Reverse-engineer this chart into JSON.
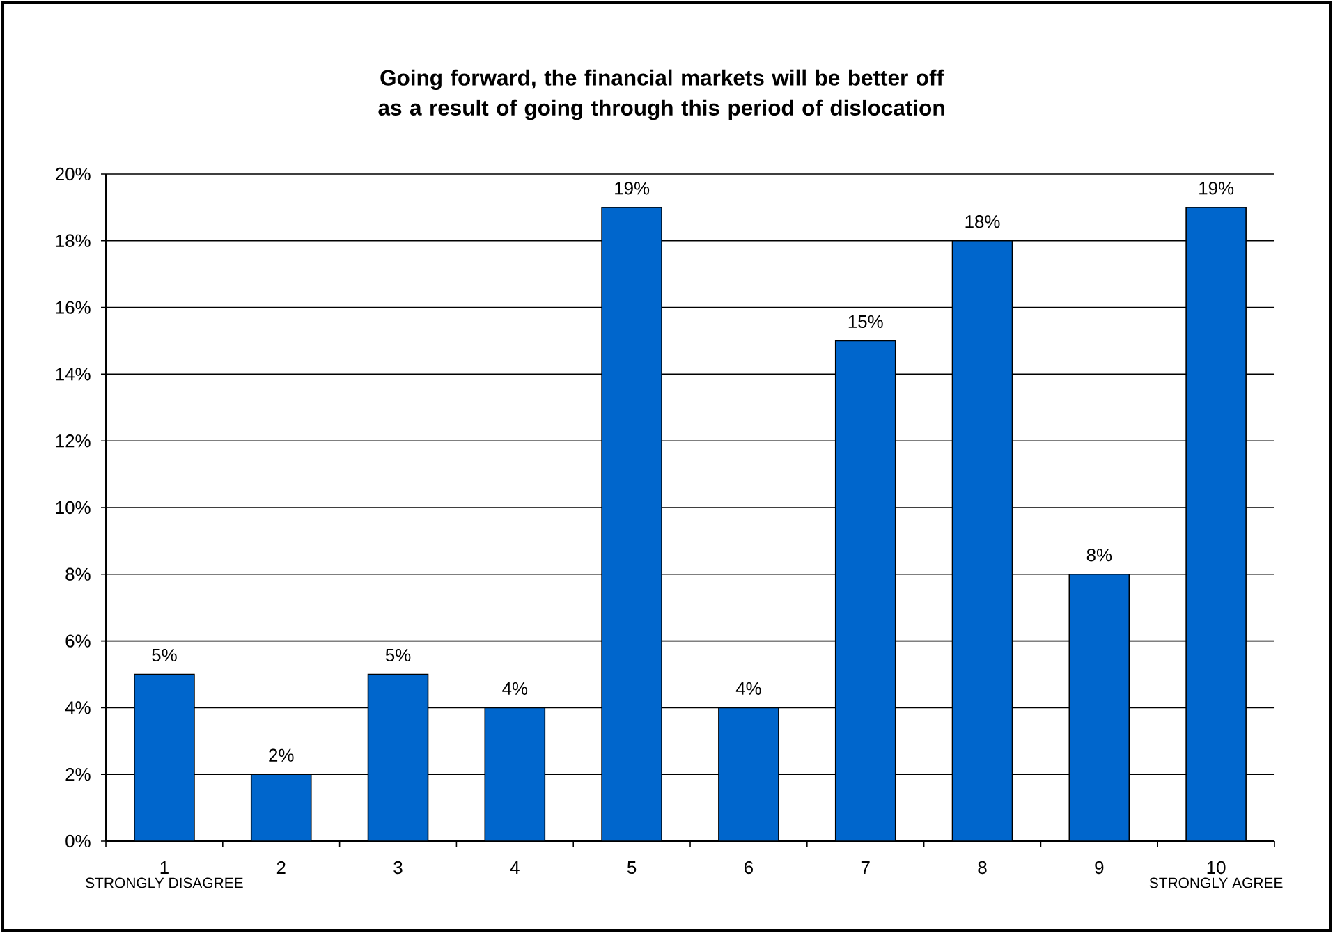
{
  "chart_data": {
    "type": "bar",
    "title": "Going forward, the financial markets will be better off as a result of going through this period of dislocation",
    "categories": [
      "1",
      "2",
      "3",
      "4",
      "5",
      "6",
      "7",
      "8",
      "9",
      "10"
    ],
    "values": [
      5,
      2,
      5,
      4,
      19,
      4,
      15,
      18,
      8,
      19
    ],
    "value_labels": [
      "5%",
      "2%",
      "5%",
      "4%",
      "19%",
      "4%",
      "15%",
      "18%",
      "8%",
      "19%"
    ],
    "color": "#0066cc",
    "ylim": [
      0,
      20
    ],
    "yticks": [
      {
        "value": 0,
        "label": "0%"
      },
      {
        "value": 2,
        "label": "2%"
      },
      {
        "value": 4,
        "label": "4%"
      },
      {
        "value": 6,
        "label": "6%"
      },
      {
        "value": 8,
        "label": "8%"
      },
      {
        "value": 10,
        "label": "10%"
      },
      {
        "value": 12,
        "label": "12%"
      },
      {
        "value": 14,
        "label": "14%"
      },
      {
        "value": 16,
        "label": "16%"
      },
      {
        "value": 18,
        "label": "18%"
      },
      {
        "value": 20,
        "label": "20%"
      }
    ],
    "grid": "y",
    "annotations": [
      "STRONGLY DISAGREE",
      "STRONGLY AGREE"
    ]
  }
}
